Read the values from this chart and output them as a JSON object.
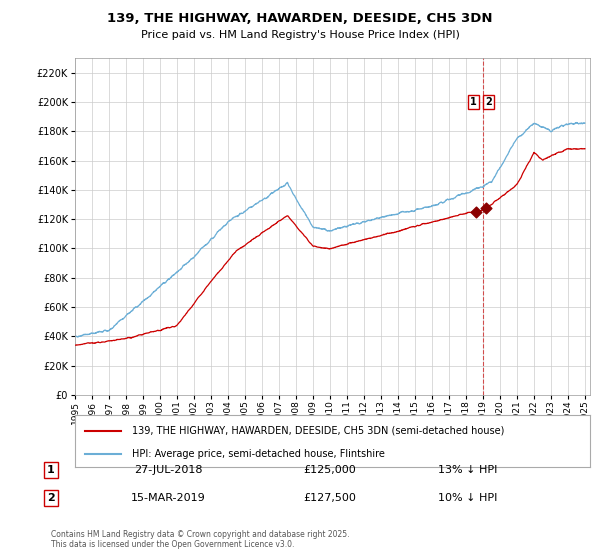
{
  "title": "139, THE HIGHWAY, HAWARDEN, DEESIDE, CH5 3DN",
  "subtitle": "Price paid vs. HM Land Registry's House Price Index (HPI)",
  "legend_line1": "139, THE HIGHWAY, HAWARDEN, DEESIDE, CH5 3DN (semi-detached house)",
  "legend_line2": "HPI: Average price, semi-detached house, Flintshire",
  "footer": "Contains HM Land Registry data © Crown copyright and database right 2025.\nThis data is licensed under the Open Government Licence v3.0.",
  "ylim": [
    0,
    230000
  ],
  "yticks": [
    0,
    20000,
    40000,
    60000,
    80000,
    100000,
    120000,
    140000,
    160000,
    180000,
    200000,
    220000
  ],
  "year_start": 1995,
  "year_end": 2025,
  "sale1_date": "27-JUL-2018",
  "sale1_price": 125000,
  "sale1_label": "13% ↓ HPI",
  "sale2_date": "15-MAR-2019",
  "sale2_price": 127500,
  "sale2_label": "10% ↓ HPI",
  "sale1_x": 2018.57,
  "sale2_x": 2019.21,
  "dashed_line_x": 2019.0,
  "hpi_color": "#6baed6",
  "price_color": "#cc0000",
  "sale_dot_color": "#8b0000",
  "background_color": "#ffffff",
  "grid_color": "#cccccc",
  "fig_width": 6.0,
  "fig_height": 5.6,
  "dpi": 100
}
